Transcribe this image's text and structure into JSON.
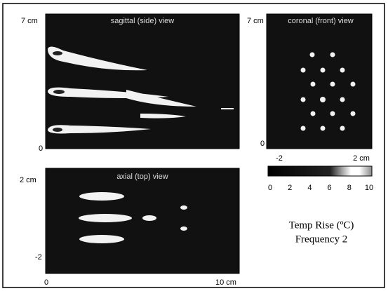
{
  "panels": {
    "sagittal": {
      "title": "sagittal (side) view",
      "y_labels": [
        "7 cm",
        "0"
      ]
    },
    "coronal": {
      "title": "coronal (front) view",
      "y_labels": [
        "7 cm",
        "0"
      ],
      "x_labels": [
        "-2",
        "2 cm"
      ]
    },
    "axial": {
      "title": "axial (top) view",
      "y_labels": [
        "2 cm",
        "-2"
      ],
      "x_labels": [
        "0",
        "10 cm"
      ]
    }
  },
  "colorbar": {
    "ticks": [
      0,
      2,
      4,
      6,
      8,
      10
    ]
  },
  "caption": [
    "Temp Rise  (ºC)",
    "Frequency 2"
  ]
}
